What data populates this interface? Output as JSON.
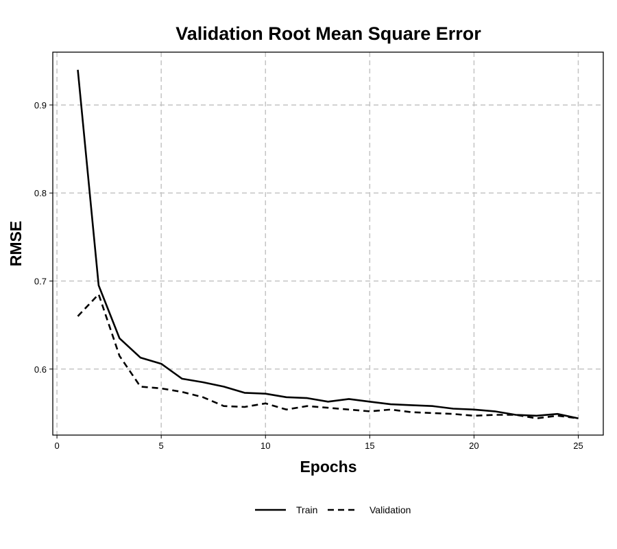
{
  "chart_data": {
    "type": "line",
    "title": "Validation Root Mean Square Error",
    "xlabel": "Epochs",
    "ylabel": "RMSE",
    "xlim": [
      -0.2,
      26.2
    ],
    "ylim": [
      0.525,
      0.96
    ],
    "xticks": [
      0,
      5,
      10,
      15,
      20,
      25
    ],
    "yticks": [
      0.6,
      0.7,
      0.8,
      0.9
    ],
    "grid": true,
    "legend_position": "bottom",
    "x": [
      1,
      2,
      3,
      4,
      5,
      6,
      7,
      8,
      9,
      10,
      11,
      12,
      13,
      14,
      15,
      16,
      17,
      18,
      19,
      20,
      21,
      22,
      23,
      24,
      25
    ],
    "series": [
      {
        "name": "Train",
        "style": "solid",
        "color": "#000000",
        "values": [
          0.94,
          0.695,
          0.635,
          0.613,
          0.606,
          0.589,
          0.585,
          0.58,
          0.573,
          0.572,
          0.568,
          0.567,
          0.563,
          0.566,
          0.563,
          0.56,
          0.559,
          0.558,
          0.555,
          0.554,
          0.552,
          0.548,
          0.547,
          0.549,
          0.544
        ]
      },
      {
        "name": "Validation",
        "style": "dashed",
        "color": "#000000",
        "values": [
          0.66,
          0.685,
          0.615,
          0.58,
          0.578,
          0.574,
          0.568,
          0.558,
          0.557,
          0.561,
          0.554,
          0.558,
          0.556,
          0.554,
          0.552,
          0.554,
          0.551,
          0.55,
          0.549,
          0.547,
          0.548,
          0.548,
          0.544,
          0.547,
          0.544
        ]
      }
    ]
  }
}
